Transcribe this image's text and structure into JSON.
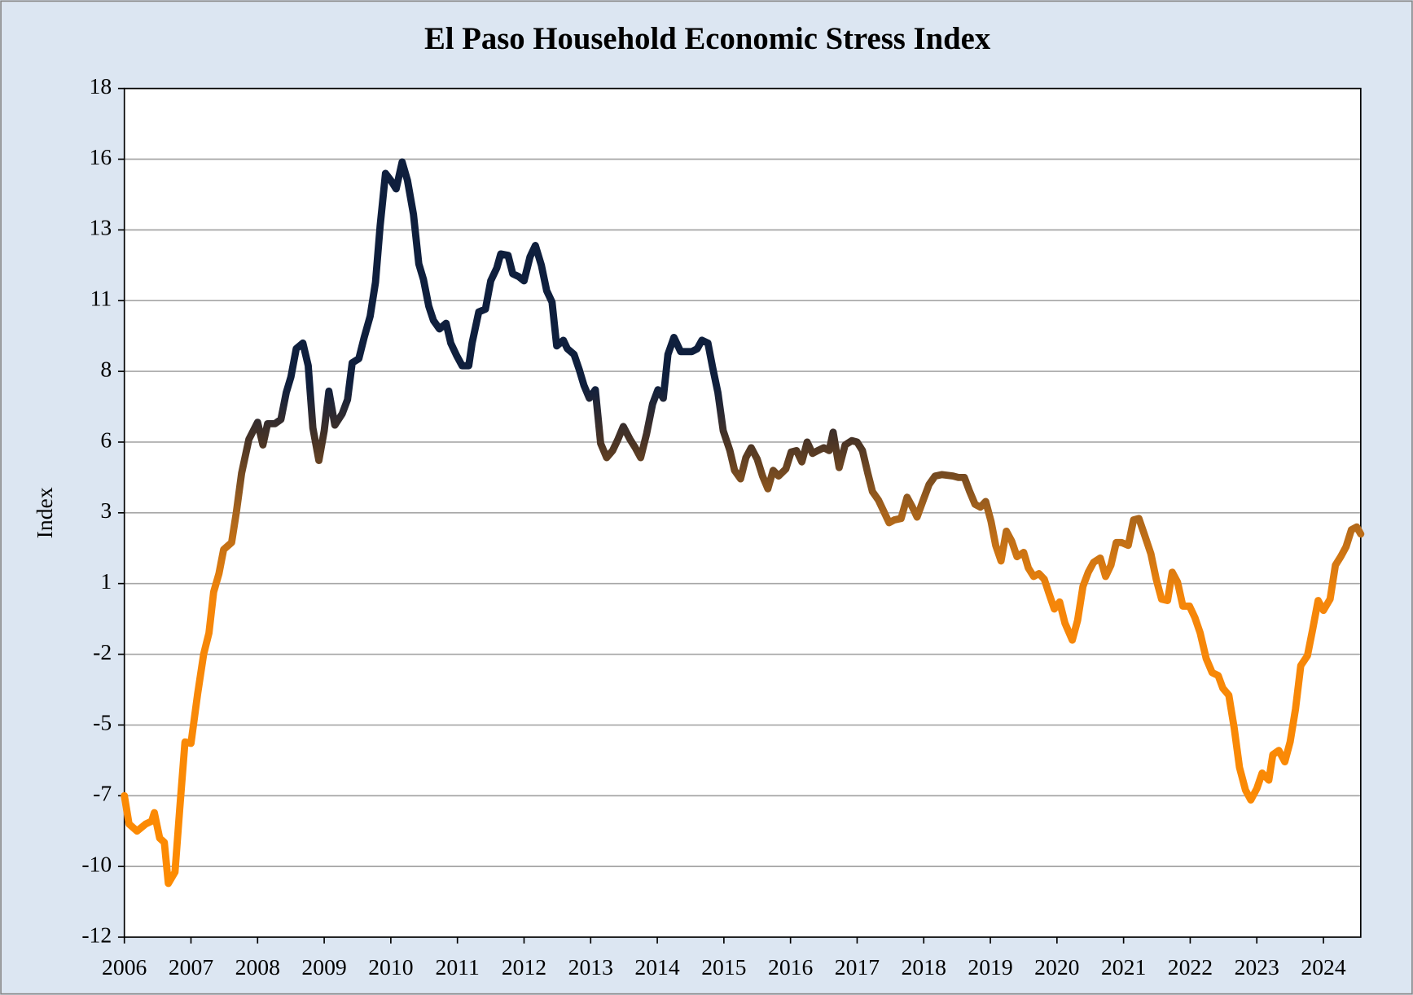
{
  "chart_data": {
    "type": "line",
    "title": "El Paso Household Economic Stress Index",
    "y_label": "Index",
    "xlim": [
      2006,
      2024.56
    ],
    "xticks": [
      2006,
      2007,
      2008,
      2009,
      2010,
      2011,
      2012,
      2013,
      2014,
      2015,
      2016,
      2017,
      2018,
      2019,
      2020,
      2021,
      2022,
      2023,
      2024
    ],
    "ylim": [
      -12,
      18
    ],
    "yticks": [
      -12,
      {
        "value": -9.5,
        "label": "-10"
      },
      -7,
      {
        "value": -4.5,
        "label": "-5"
      },
      -2,
      {
        "value": 0.5,
        "label": "1"
      },
      3,
      {
        "value": 5.5,
        "label": "6"
      },
      8,
      {
        "value": 10.5,
        "label": "11"
      },
      13,
      {
        "value": 15.5,
        "label": "16"
      },
      18
    ],
    "grid": true,
    "color_scale": [
      {
        "value": -12,
        "color": "#ff8c00"
      },
      {
        "value": 0,
        "color": "#f5860a"
      },
      {
        "value": 3,
        "color": "#a8641c"
      },
      {
        "value": 5.5,
        "color": "#4a3425"
      },
      {
        "value": 7.5,
        "color": "#0f1f3d"
      },
      {
        "value": 18,
        "color": "#0f1f3d"
      }
    ],
    "x": [
      2006.0,
      2006.07,
      2006.19,
      2006.32,
      2006.41,
      2006.45,
      2006.53,
      2006.6,
      2006.66,
      2006.76,
      2006.83,
      2006.91,
      2007.0,
      2007.1,
      2007.19,
      2007.27,
      2007.34,
      2007.42,
      2007.49,
      2007.61,
      2007.68,
      2007.76,
      2007.87,
      2008.0,
      2008.08,
      2008.15,
      2008.26,
      2008.35,
      2008.43,
      2008.5,
      2008.58,
      2008.68,
      2008.76,
      2008.83,
      2008.92,
      2009.0,
      2009.07,
      2009.16,
      2009.27,
      2009.35,
      2009.42,
      2009.52,
      2009.6,
      2009.69,
      2009.77,
      2009.84,
      2009.92,
      2010.0,
      2010.08,
      2010.17,
      2010.25,
      2010.34,
      2010.42,
      2010.49,
      2010.57,
      2010.64,
      2010.73,
      2010.83,
      2010.9,
      2010.99,
      2011.07,
      2011.17,
      2011.22,
      2011.32,
      2011.42,
      2011.5,
      2011.59,
      2011.65,
      2011.76,
      2011.83,
      2011.92,
      2012.0,
      2012.09,
      2012.17,
      2012.26,
      2012.34,
      2012.42,
      2012.49,
      2012.59,
      2012.65,
      2012.75,
      2012.83,
      2012.9,
      2012.98,
      2013.07,
      2013.15,
      2013.24,
      2013.33,
      2013.41,
      2013.49,
      2013.59,
      2013.67,
      2013.75,
      2013.84,
      2013.93,
      2014.01,
      2014.09,
      2014.16,
      2014.25,
      2014.35,
      2014.52,
      2014.6,
      2014.67,
      2014.76,
      2014.83,
      2014.91,
      2014.99,
      2015.09,
      2015.16,
      2015.25,
      2015.33,
      2015.41,
      2015.5,
      2015.58,
      2015.66,
      2015.74,
      2015.82,
      2015.93,
      2016.01,
      2016.09,
      2016.17,
      2016.25,
      2016.33,
      2016.41,
      2016.5,
      2016.58,
      2016.64,
      2016.73,
      2016.82,
      2016.92,
      2017.0,
      2017.08,
      2017.16,
      2017.23,
      2017.32,
      2017.4,
      2017.48,
      2017.56,
      2017.66,
      2017.75,
      2017.83,
      2017.9,
      2018.0,
      2018.08,
      2018.17,
      2018.27,
      2018.44,
      2018.52,
      2018.61,
      2018.69,
      2018.77,
      2018.85,
      2018.93,
      2019.01,
      2019.08,
      2019.16,
      2019.24,
      2019.32,
      2019.4,
      2019.5,
      2019.57,
      2019.65,
      2019.73,
      2019.81,
      2019.88,
      2019.96,
      2020.04,
      2020.12,
      2020.23,
      2020.31,
      2020.39,
      2020.47,
      2020.55,
      2020.65,
      2020.73,
      2020.81,
      2020.89,
      2020.97,
      2021.07,
      2021.15,
      2021.23,
      2021.31,
      2021.41,
      2021.49,
      2021.57,
      2021.66,
      2021.73,
      2021.81,
      2021.89,
      2021.99,
      2022.07,
      2022.15,
      2022.24,
      2022.33,
      2022.42,
      2022.49,
      2022.58,
      2022.66,
      2022.74,
      2022.83,
      2022.91,
      2023.0,
      2023.08,
      2023.18,
      2023.24,
      2023.33,
      2023.42,
      2023.5,
      2023.58,
      2023.66,
      2023.76,
      2023.84,
      2023.92,
      2024.0,
      2024.1,
      2024.18,
      2024.26,
      2024.34,
      2024.42,
      2024.5,
      2024.56
    ],
    "values": [
      -7.0,
      -8.0,
      -8.25,
      -8.0,
      -7.9,
      -7.6,
      -8.5,
      -8.65,
      -10.1,
      -9.7,
      -7.5,
      -5.1,
      -5.15,
      -3.4,
      -2.0,
      -1.25,
      0.2,
      0.85,
      1.7,
      1.95,
      3.0,
      4.4,
      5.6,
      6.2,
      5.4,
      6.15,
      6.15,
      6.3,
      7.25,
      7.8,
      8.8,
      9.0,
      8.2,
      6.0,
      4.85,
      5.9,
      7.3,
      6.1,
      6.5,
      7.0,
      8.3,
      8.45,
      9.2,
      9.95,
      11.15,
      13.15,
      15.0,
      14.75,
      14.45,
      15.4,
      14.75,
      13.55,
      11.8,
      11.25,
      10.3,
      9.8,
      9.5,
      9.7,
      9.0,
      8.55,
      8.2,
      8.2,
      9.0,
      10.1,
      10.2,
      11.2,
      11.65,
      12.15,
      12.1,
      11.45,
      11.35,
      11.2,
      12.05,
      12.45,
      11.75,
      10.85,
      10.45,
      8.9,
      9.1,
      8.8,
      8.6,
      8.05,
      7.5,
      7.05,
      7.35,
      5.45,
      4.95,
      5.2,
      5.6,
      6.05,
      5.6,
      5.3,
      4.95,
      5.8,
      6.85,
      7.35,
      7.05,
      8.6,
      9.2,
      8.7,
      8.7,
      8.8,
      9.1,
      9.0,
      8.15,
      7.25,
      5.9,
      5.2,
      4.5,
      4.2,
      4.95,
      5.3,
      4.9,
      4.3,
      3.85,
      4.5,
      4.3,
      4.55,
      5.15,
      5.2,
      4.8,
      5.5,
      5.1,
      5.2,
      5.3,
      5.2,
      5.85,
      4.6,
      5.4,
      5.55,
      5.5,
      5.2,
      4.4,
      3.75,
      3.45,
      3.05,
      2.65,
      2.75,
      2.8,
      3.55,
      3.2,
      2.85,
      3.5,
      4.0,
      4.3,
      4.35,
      4.3,
      4.25,
      4.25,
      3.75,
      3.3,
      3.2,
      3.4,
      2.7,
      1.85,
      1.3,
      2.35,
      2.0,
      1.45,
      1.6,
      1.05,
      0.75,
      0.85,
      0.65,
      0.15,
      -0.4,
      -0.15,
      -0.9,
      -1.5,
      -0.8,
      0.4,
      0.9,
      1.25,
      1.4,
      0.75,
      1.15,
      1.95,
      1.95,
      1.85,
      2.75,
      2.8,
      2.25,
      1.55,
      0.65,
      -0.05,
      -0.1,
      0.9,
      0.55,
      -0.3,
      -0.3,
      -0.7,
      -1.25,
      -2.15,
      -2.65,
      -2.75,
      -3.2,
      -3.45,
      -4.6,
      -6.0,
      -6.8,
      -7.15,
      -6.75,
      -6.2,
      -6.45,
      -5.55,
      -5.4,
      -5.8,
      -5.1,
      -3.95,
      -2.4,
      -2.05,
      -1.1,
      -0.1,
      -0.45,
      -0.05,
      1.15,
      1.45,
      1.8,
      2.4,
      2.5,
      2.25
    ]
  }
}
